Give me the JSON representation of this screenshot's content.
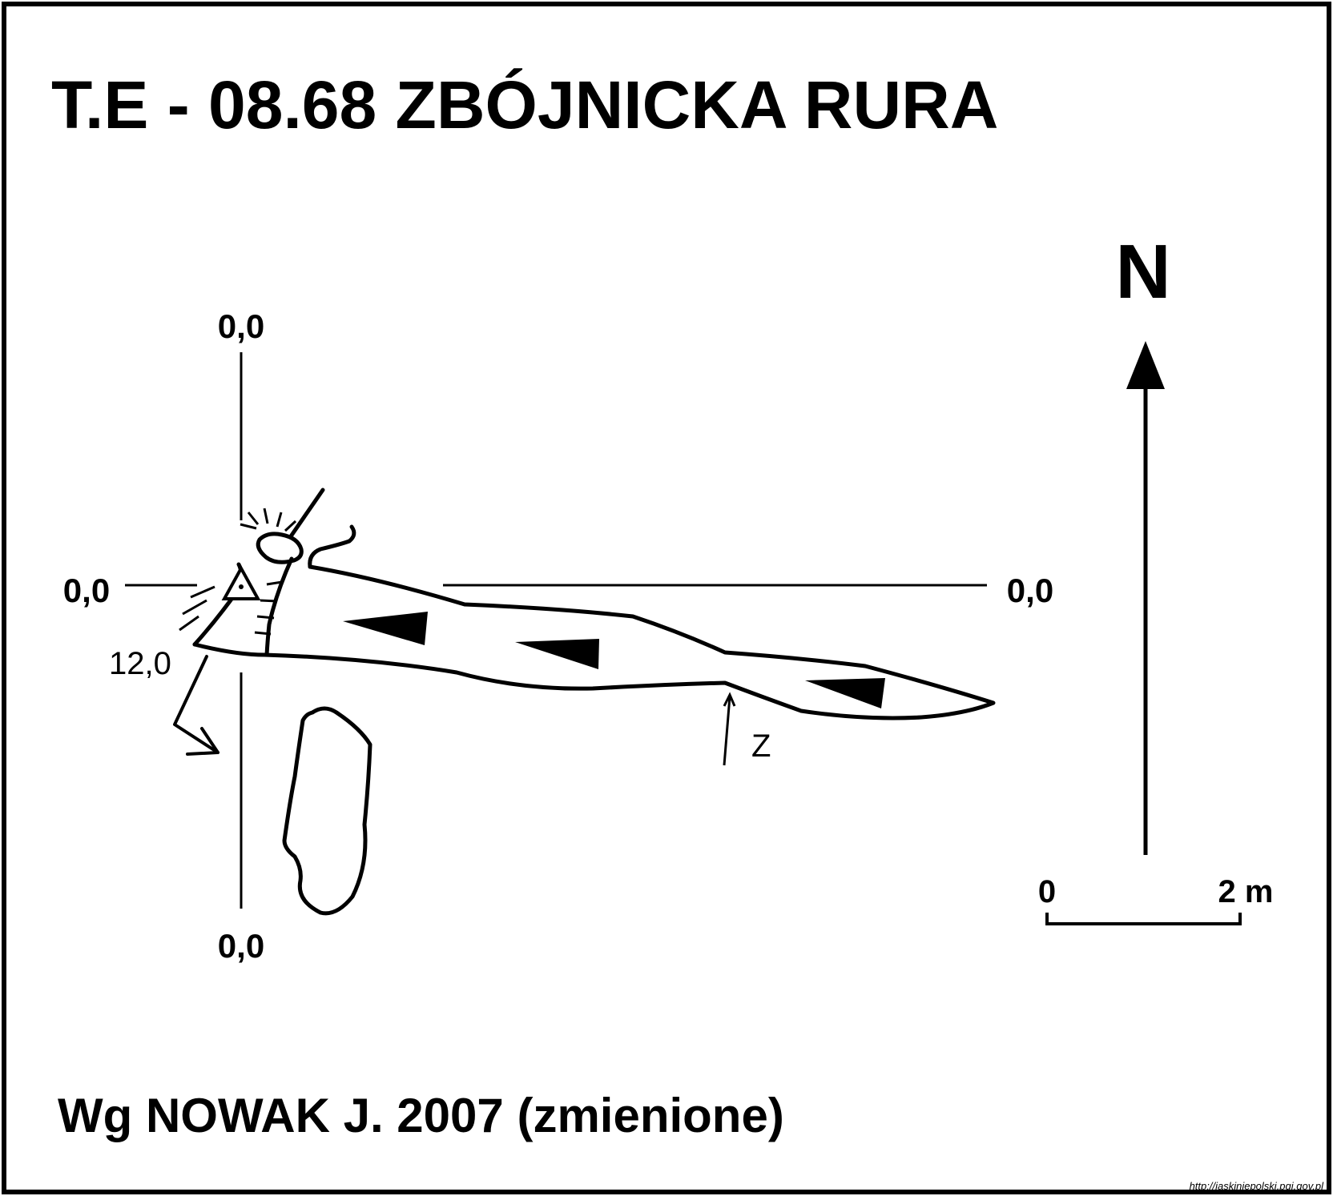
{
  "map": {
    "title": "T.E - 08.68  ZBÓJNICKA RURA",
    "credit": "Wg  NOWAK J. 2007 (zmienione)",
    "source_url": "http://jaskiniepolski.pgi.gov.pl"
  },
  "coordinates": {
    "top": "0,0",
    "left": "0,0",
    "right": "0,0",
    "bottom": "0,0"
  },
  "depth_label": "12,0",
  "passage_label": "Z",
  "north_label": "N",
  "scale": {
    "start_label": "0",
    "end_label": "2 m"
  },
  "colors": {
    "ink": "#000000",
    "background": "#ffffff"
  }
}
